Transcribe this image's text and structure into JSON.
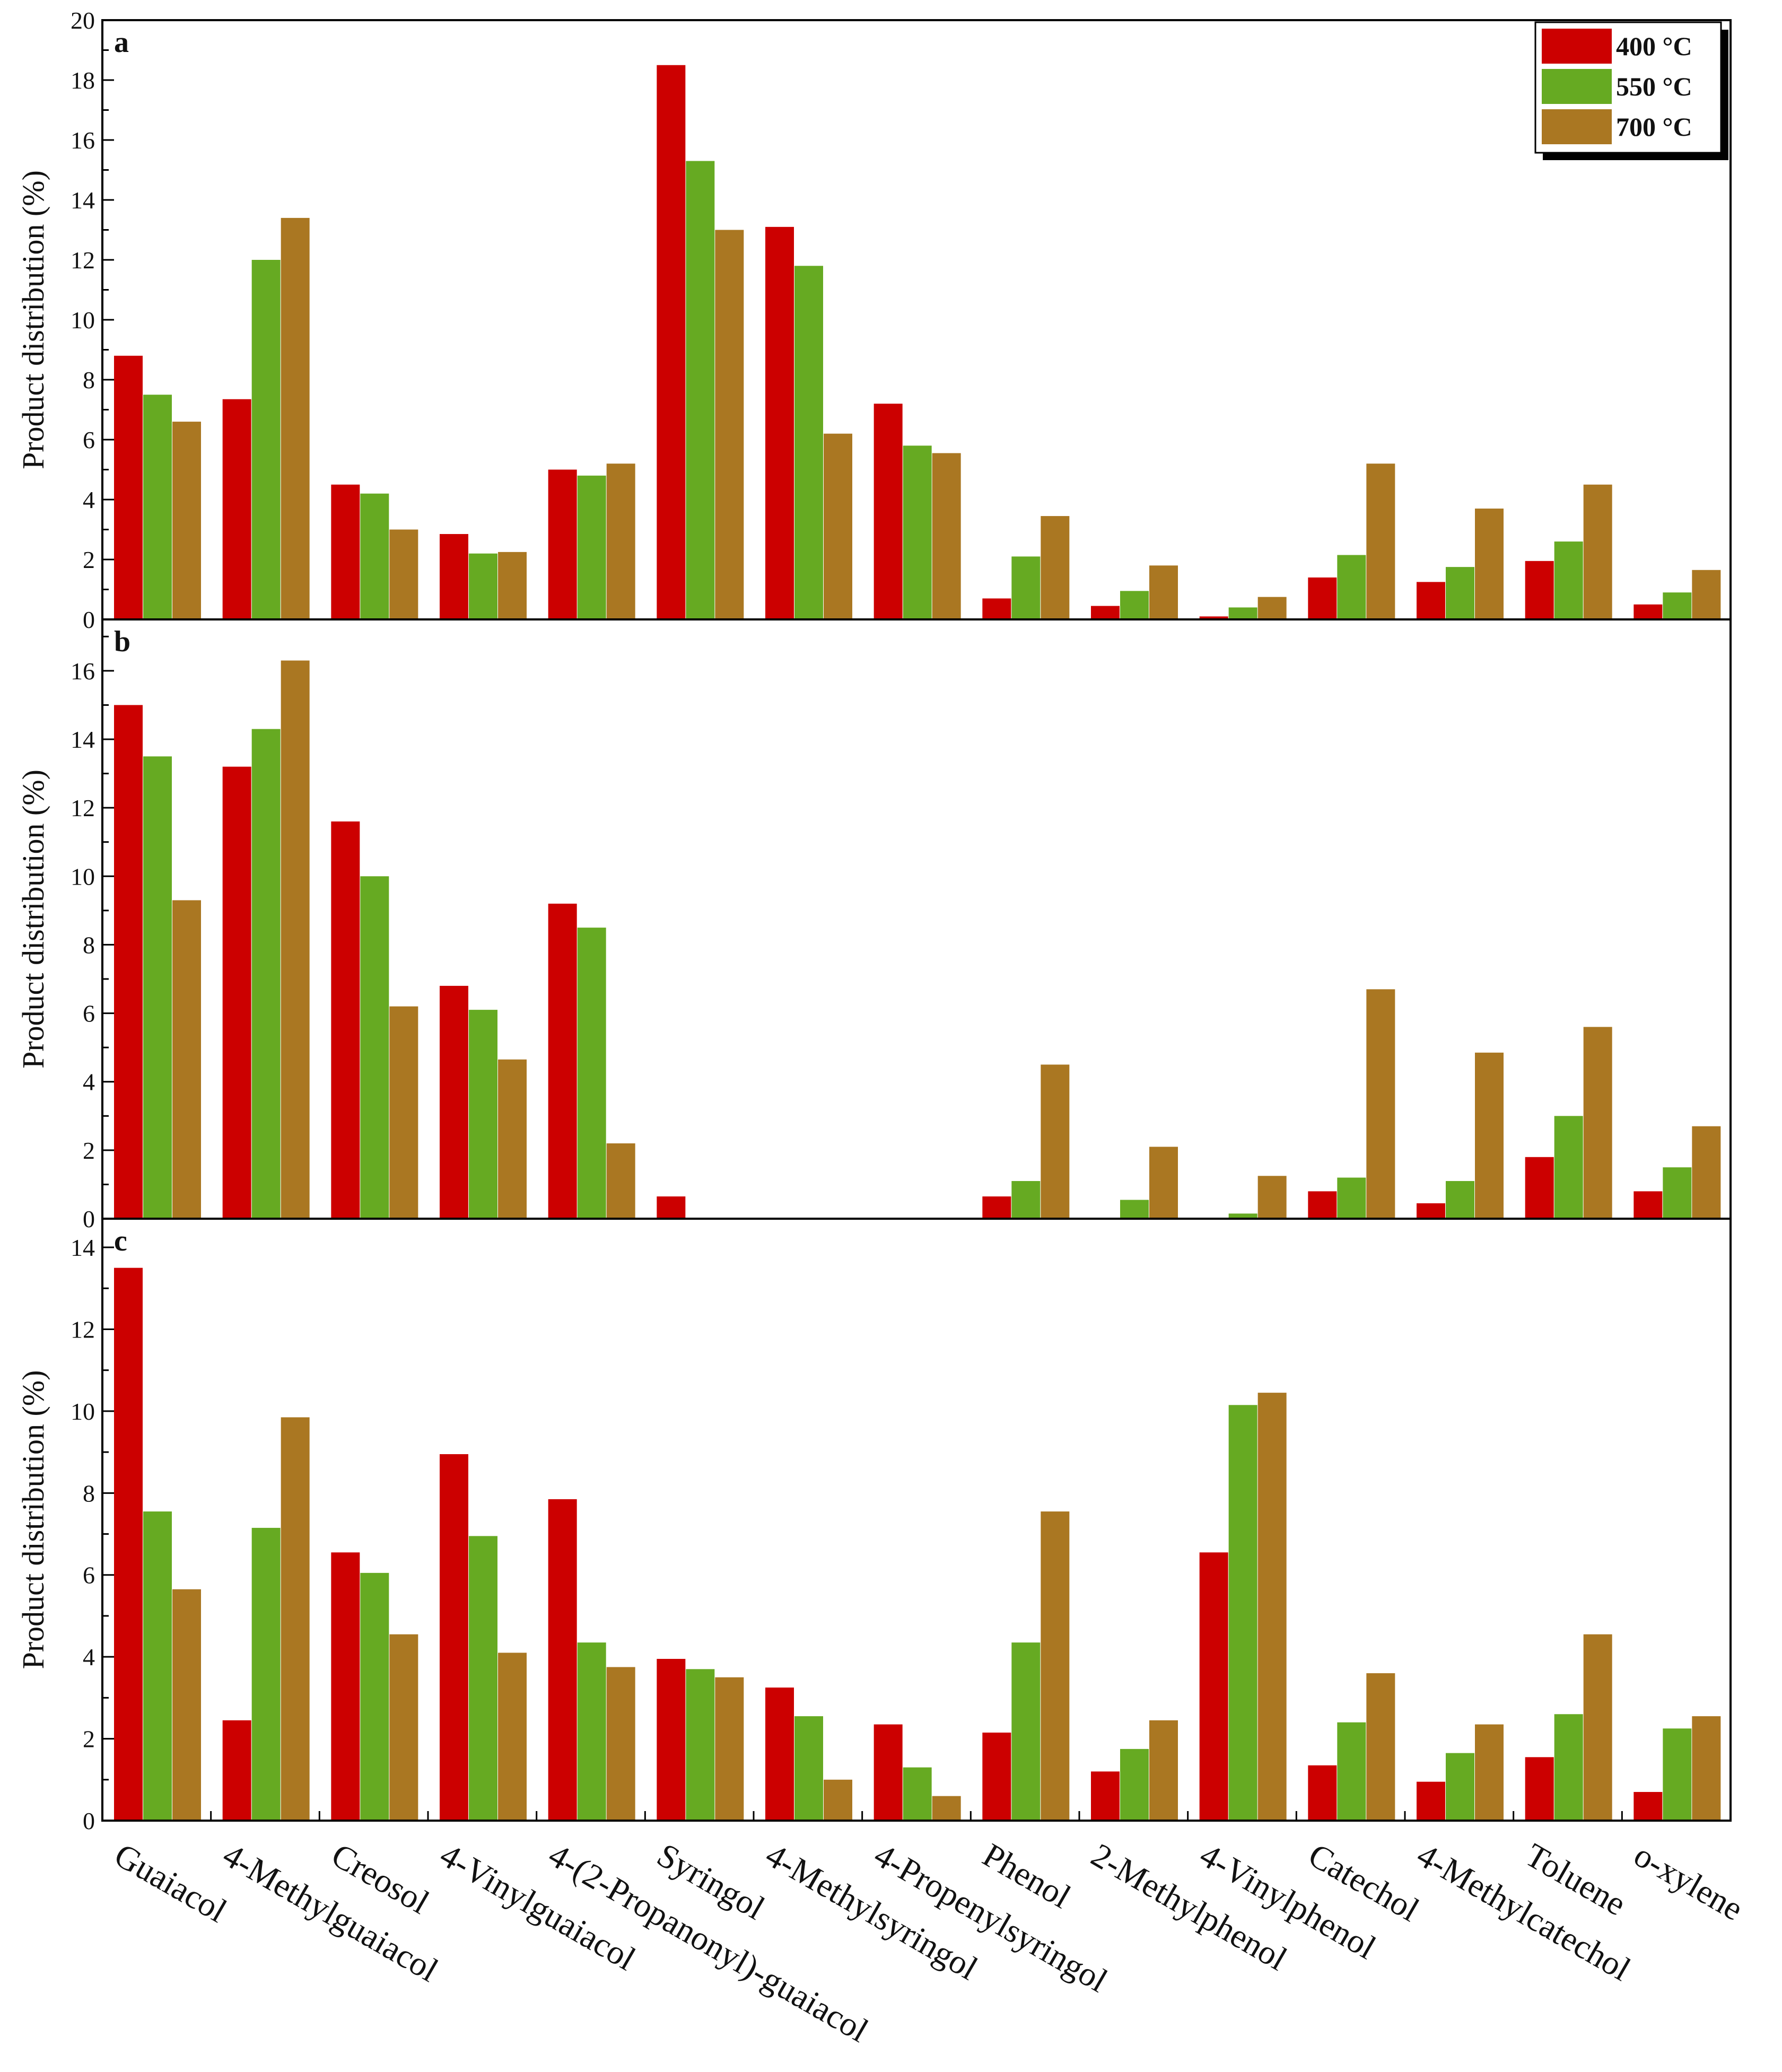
{
  "chart_data": [
    {
      "type": "bar",
      "panel": "a",
      "ylabel": "Product distribution (%)",
      "ylim": [
        0,
        20
      ],
      "yticks": [
        0,
        2,
        4,
        6,
        8,
        10,
        12,
        14,
        16,
        18,
        20
      ],
      "categories": [
        "Guaiacol",
        "4-Methylguaiacol",
        "Creosol",
        "4-Vinylguaiacol",
        "4-(2-Propanonyl)-guaiacol",
        "Syringol",
        "4-Methylsyringol",
        "4-Propenylsyringol",
        "Phenol",
        "2-Methylphenol",
        "4-Vinylphenol",
        "Catechol",
        "4-Methylcatechol",
        "Toluene",
        "o-xylene"
      ],
      "series": [
        {
          "name": "400 °C",
          "values": [
            8.8,
            7.35,
            4.5,
            2.85,
            5.0,
            18.5,
            13.1,
            7.2,
            0.7,
            0.45,
            0.1,
            1.4,
            1.25,
            1.95,
            0.5
          ]
        },
        {
          "name": "550 °C",
          "values": [
            7.5,
            12.0,
            4.2,
            2.2,
            4.8,
            15.3,
            11.8,
            5.8,
            2.1,
            0.95,
            0.4,
            2.15,
            1.75,
            2.6,
            0.9
          ]
        },
        {
          "name": "700 °C",
          "values": [
            6.6,
            13.4,
            3.0,
            2.25,
            5.2,
            13.0,
            6.2,
            5.55,
            3.45,
            1.8,
            0.75,
            5.2,
            3.7,
            4.5,
            1.65
          ]
        }
      ],
      "legend": {
        "position": "top-right",
        "entries": [
          "400 °C",
          "550 °C",
          "700 °C"
        ]
      }
    },
    {
      "type": "bar",
      "panel": "b",
      "ylabel": "Product distribution (%)",
      "ylim": [
        0,
        17.5
      ],
      "yticks": [
        0,
        2,
        4,
        6,
        8,
        10,
        12,
        14,
        16
      ],
      "categories": [
        "Guaiacol",
        "4-Methylguaiacol",
        "Creosol",
        "4-Vinylguaiacol",
        "4-(2-Propanonyl)-guaiacol",
        "Syringol",
        "4-Methylsyringol",
        "4-Propenylsyringol",
        "Phenol",
        "2-Methylphenol",
        "4-Vinylphenol",
        "Catechol",
        "4-Methylcatechol",
        "Toluene",
        "o-xylene"
      ],
      "series": [
        {
          "name": "400 °C",
          "values": [
            15.0,
            13.2,
            11.6,
            6.8,
            9.2,
            0.65,
            0,
            0,
            0.65,
            0,
            0,
            0.8,
            0.45,
            1.8,
            0.8
          ]
        },
        {
          "name": "550 °C",
          "values": [
            13.5,
            14.3,
            10.0,
            6.1,
            8.5,
            0,
            0,
            0,
            1.1,
            0.55,
            0.15,
            1.2,
            1.1,
            3.0,
            1.5
          ]
        },
        {
          "name": "700 °C",
          "values": [
            9.3,
            16.3,
            6.2,
            4.65,
            2.2,
            0,
            0,
            0,
            4.5,
            2.1,
            1.25,
            6.7,
            4.85,
            5.6,
            2.7
          ]
        }
      ]
    },
    {
      "type": "bar",
      "panel": "c",
      "ylabel": "Product distribution (%)",
      "ylim": [
        0,
        14.7
      ],
      "yticks": [
        0,
        2,
        4,
        6,
        8,
        10,
        12,
        14
      ],
      "categories": [
        "Guaiacol",
        "4-Methylguaiacol",
        "Creosol",
        "4-Vinylguaiacol",
        "4-(2-Propanonyl)-guaiacol",
        "Syringol",
        "4-Methylsyringol",
        "4-Propenylsyringol",
        "Phenol",
        "2-Methylphenol",
        "4-Vinylphenol",
        "Catechol",
        "4-Methylcatechol",
        "Toluene",
        "o-xylene"
      ],
      "series": [
        {
          "name": "400 °C",
          "values": [
            13.5,
            2.45,
            6.55,
            8.95,
            7.85,
            3.95,
            3.25,
            2.35,
            2.15,
            1.2,
            6.55,
            1.35,
            0.95,
            1.55,
            0.7
          ]
        },
        {
          "name": "550 °C",
          "values": [
            7.55,
            7.15,
            6.05,
            6.95,
            4.35,
            3.7,
            2.55,
            1.3,
            4.35,
            1.75,
            10.15,
            2.4,
            1.65,
            2.6,
            2.25
          ]
        },
        {
          "name": "700 °C",
          "values": [
            5.65,
            9.85,
            4.55,
            4.1,
            3.75,
            3.5,
            1.0,
            0.6,
            7.55,
            2.45,
            10.45,
            3.6,
            2.35,
            4.55,
            2.55
          ]
        }
      ]
    }
  ],
  "colors": {
    "400 °C": "#cc0000",
    "550 °C": "#66aa22",
    "700 °C": "#aa7722"
  }
}
